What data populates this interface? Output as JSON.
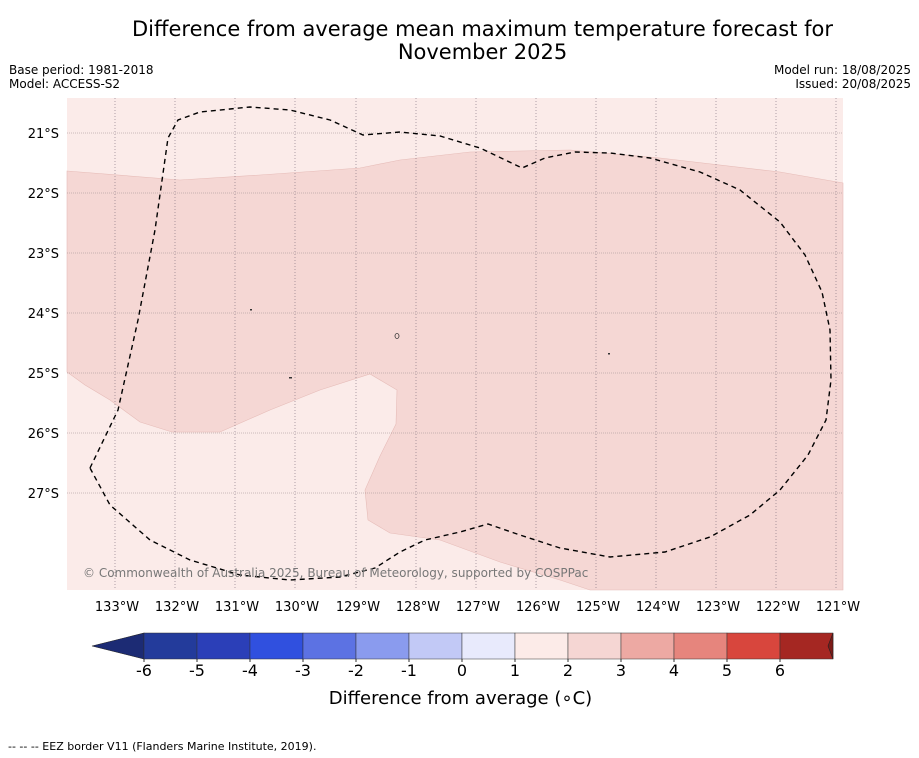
{
  "title_line1": "Difference from average mean maximum temperature forecast for",
  "title_line2": "November 2025",
  "meta_left": {
    "base_period": "Base period: 1981-2018",
    "model": "Model: ACCESS-S2"
  },
  "meta_right": {
    "model_run": "Model run: 18/08/2025",
    "issued": "Issued: 20/08/2025"
  },
  "map": {
    "lat_labels": [
      "21°S",
      "22°S",
      "23°S",
      "24°S",
      "25°S",
      "26°S",
      "27°S"
    ],
    "lon_labels": [
      "133°W",
      "132°W",
      "131°W",
      "130°W",
      "129°W",
      "128°W",
      "127°W",
      "126°W",
      "125°W",
      "124°W",
      "123°W",
      "122°W",
      "121°W"
    ],
    "copyright": "© Commonwealth of Australia 2025, Bureau of Meteorology, supported by COSPPac",
    "colors": {
      "zero_to_one": "#fbebe9",
      "one_to_two": "#f5d7d4"
    }
  },
  "colorbar": {
    "ticks": [
      "-6",
      "-5",
      "-4",
      "-3",
      "-2",
      "-1",
      "0",
      "1",
      "2",
      "3",
      "4",
      "5",
      "6"
    ],
    "colors": [
      "#233b9b",
      "#2b3fb8",
      "#3050df",
      "#5c72e3",
      "#8a9bee",
      "#c2c9f6",
      "#e8eafc",
      "#fcebe8",
      "#f5d6d3",
      "#eda9a3",
      "#e6857d",
      "#d8463d",
      "#a52722"
    ],
    "low_arrow_color": "#1c2b74",
    "high_arrow_color": "#7c1a17",
    "label": "Difference from average (∘C)"
  },
  "footer": "--  --  -- EEZ border V11 (Flanders Marine Institute, 2019)."
}
